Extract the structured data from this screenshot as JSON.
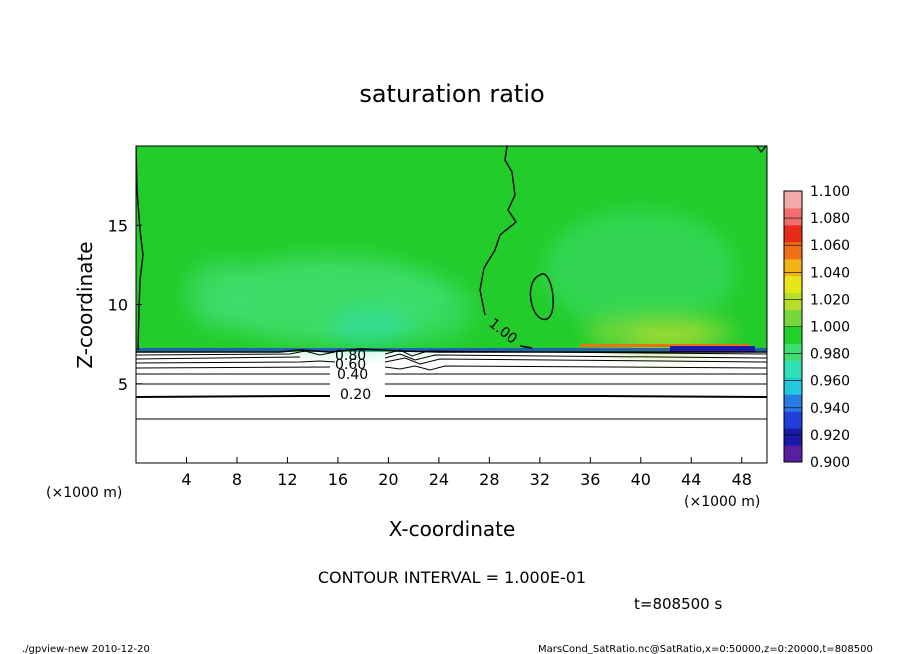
{
  "chart_data": {
    "type": "contour",
    "title": "saturation ratio",
    "xlabel": "X-coordinate",
    "ylabel": "Z-coordinate",
    "x_unit_note": "(×1000 m)",
    "y_unit_note": "(×1000 m)",
    "xlim": [
      0,
      50
    ],
    "ylim": [
      0,
      20
    ],
    "x_ticks": [
      4,
      8,
      12,
      16,
      20,
      24,
      28,
      32,
      36,
      40,
      44,
      48
    ],
    "y_ticks": [
      5,
      10,
      15
    ],
    "contour_interval_text": "CONTOUR INTERVAL = 1.000E-01",
    "time_text": "t=808500 s",
    "contour_labels": [
      {
        "text": "0.20",
        "x": 18.5,
        "z": 4.2
      },
      {
        "text": "0.40",
        "x": 17.5,
        "z": 5.6
      },
      {
        "text": "0.60",
        "x": 17.0,
        "z": 6.3
      },
      {
        "text": "0.80",
        "x": 17.0,
        "z": 6.8
      },
      {
        "text": "1.00",
        "x": 28.5,
        "z": 8.2
      }
    ],
    "contour_lines_z": [
      2.7,
      4.2,
      5.0,
      5.6,
      6.0,
      6.3,
      6.55,
      6.8,
      7.0
    ],
    "colorbar": {
      "ticks": [
        "1.100",
        "1.080",
        "1.060",
        "1.040",
        "1.020",
        "1.000",
        "0.980",
        "0.960",
        "0.940",
        "0.920",
        "0.900"
      ],
      "colors_bottom_to_top": [
        "#5a1fa0",
        "#1a1aa8",
        "#1f3fd8",
        "#2a7ae6",
        "#22c8dc",
        "#2fe0b8",
        "#3ede6e",
        "#22d02a",
        "#78d83a",
        "#b4de2a",
        "#e6e61a",
        "#f0b414",
        "#f06e14",
        "#e82a1a",
        "#f06e6e",
        "#f5aaaa"
      ]
    }
  },
  "footer": {
    "left": "./gpview-new   2010-12-20",
    "right": "MarsCond_SatRatio.nc@SatRatio,x=0:50000,z=0:20000,t=808500"
  }
}
